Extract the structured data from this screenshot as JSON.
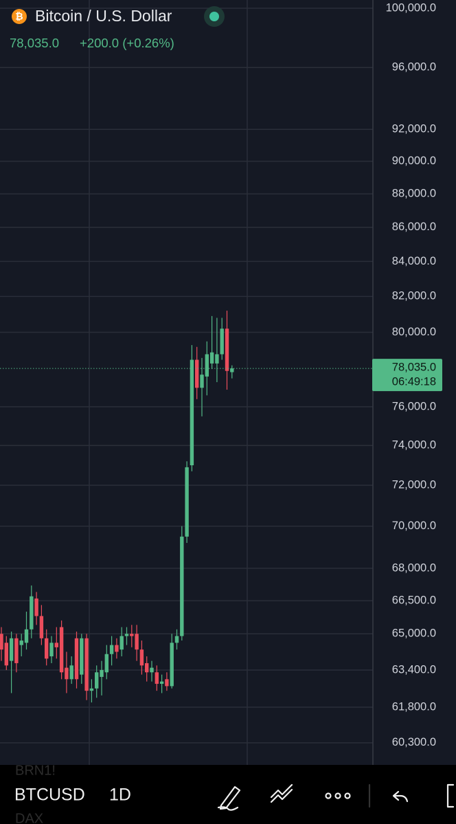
{
  "chart_data": {
    "type": "candlestick",
    "title": "Bitcoin / U.S. Dollar",
    "change": "+200.0 (+0.26%)",
    "last_price": {
      "value": 78035,
      "label": "78,035.0"
    },
    "countdown": "06:49:18",
    "log_scale": true,
    "grid": true,
    "up_color": "#53b987",
    "down_color": "#eb4d5c",
    "ylim": [
      59390,
      100570
    ],
    "yticks": [
      {
        "value": 60300,
        "label": "60,300.0"
      },
      {
        "value": 61800,
        "label": "61,800.0"
      },
      {
        "value": 63400,
        "label": "63,400.0"
      },
      {
        "value": 65000,
        "label": "65,000.0"
      },
      {
        "value": 66500,
        "label": "66,500.0"
      },
      {
        "value": 68000,
        "label": "68,000.0"
      },
      {
        "value": 70000,
        "label": "70,000.0"
      },
      {
        "value": 72000,
        "label": "72,000.0"
      },
      {
        "value": 74000,
        "label": "74,000.0"
      },
      {
        "value": 76000,
        "label": "76,000.0"
      },
      {
        "value": 80000,
        "label": "80,000.0"
      },
      {
        "value": 82000,
        "label": "82,000.0"
      },
      {
        "value": 84000,
        "label": "84,000.0"
      },
      {
        "value": 86000,
        "label": "86,000.0"
      },
      {
        "value": 88000,
        "label": "88,000.0"
      },
      {
        "value": 90000,
        "label": "90,000.0"
      },
      {
        "value": 92000,
        "label": "92,000.0"
      },
      {
        "value": 96000,
        "label": "96,000.0"
      },
      {
        "value": 100000,
        "label": "100,000.0"
      }
    ],
    "open": [
      65000,
      64600,
      63800,
      64800,
      64500,
      64600,
      65200,
      66600,
      65800,
      64800,
      64000,
      64600,
      65300,
      63500,
      63000,
      64800,
      63200,
      64800,
      62500,
      62600,
      63100,
      63300,
      64100,
      64500,
      64300,
      64900,
      65000,
      65000,
      64300,
      63700,
      63300,
      63300,
      62800,
      63000,
      62700,
      64600,
      64900,
      69500,
      73000,
      78500,
      77000,
      77600,
      78300,
      78300,
      78800,
      80200,
      77835
    ],
    "high": [
      65300,
      64900,
      65100,
      65000,
      65000,
      66000,
      67200,
      66900,
      66300,
      65200,
      64900,
      65300,
      65600,
      64200,
      64000,
      65100,
      65000,
      65000,
      63000,
      63600,
      63800,
      64500,
      64900,
      64800,
      65300,
      65300,
      65400,
      65400,
      64700,
      64000,
      63800,
      63600,
      63200,
      63300,
      65000,
      65200,
      70000,
      73200,
      79300,
      79200,
      78600,
      79500,
      80900,
      80800,
      80800,
      81200,
      78200
    ],
    "low": [
      63800,
      63400,
      62400,
      63300,
      64000,
      64300,
      64800,
      65400,
      64500,
      63600,
      63700,
      63900,
      63000,
      62400,
      62800,
      62600,
      62800,
      62100,
      62000,
      62200,
      62300,
      63000,
      63600,
      63900,
      64000,
      64500,
      64400,
      63800,
      63200,
      62900,
      62900,
      62500,
      62400,
      62500,
      62600,
      64300,
      64700,
      69200,
      72700,
      76400,
      75500,
      76600,
      78000,
      77300,
      78500,
      76900,
      77500
    ],
    "close": [
      64300,
      63600,
      64800,
      63700,
      64700,
      65200,
      66700,
      65800,
      64800,
      63900,
      64600,
      64400,
      63300,
      63000,
      63600,
      63000,
      64800,
      62500,
      62600,
      63300,
      63400,
      64100,
      64500,
      64200,
      64900,
      65000,
      64900,
      64300,
      63600,
      63300,
      63500,
      62800,
      62900,
      62700,
      64600,
      64900,
      69500,
      72900,
      78500,
      77000,
      77700,
      78800,
      78900,
      78800,
      80200,
      77900,
      78035
    ]
  },
  "toolbar": {
    "symbol": "BTCUSD",
    "interval": "1D",
    "ghost_top": "BRN1!",
    "ghost_bottom": "DAX"
  }
}
